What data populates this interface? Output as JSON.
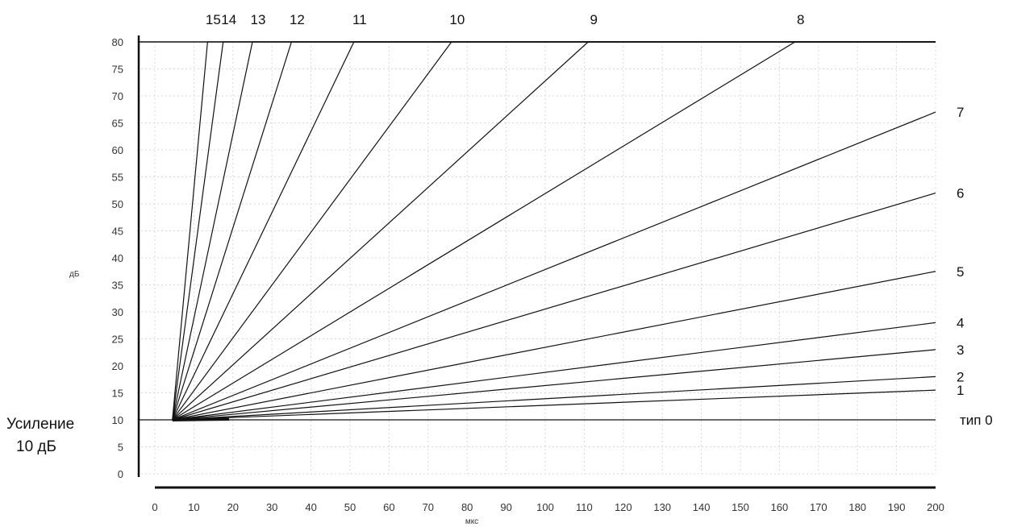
{
  "chart_data": {
    "type": "line",
    "xlabel": "мкс",
    "ylabel": "дБ",
    "xlim": [
      0,
      200
    ],
    "ylim": [
      0,
      80
    ],
    "grid": true,
    "x_ticks": [
      "0",
      "10",
      "20",
      "30",
      "40",
      "50",
      "60",
      "70",
      "80",
      "90",
      "100",
      "110",
      "120",
      "130",
      "140",
      "150",
      "160",
      "170",
      "180",
      "190",
      "200"
    ],
    "y_ticks": [
      "0",
      "5",
      "10",
      "15",
      "20",
      "25",
      "30",
      "35",
      "40",
      "45",
      "50",
      "55",
      "60",
      "65",
      "70",
      "75",
      "80"
    ],
    "annotation": {
      "line1": "Усиление",
      "line2": "10 дБ"
    },
    "baseline_gain": 10,
    "start_x": 4.5,
    "series": [
      {
        "name": "тип 0",
        "x": [
          4.5,
          200
        ],
        "y": [
          10,
          10
        ]
      },
      {
        "name": "1",
        "x": [
          4.5,
          200
        ],
        "y": [
          10,
          15.5
        ]
      },
      {
        "name": "2",
        "x": [
          4.5,
          200
        ],
        "y": [
          10,
          18
        ]
      },
      {
        "name": "3",
        "x": [
          4.5,
          200
        ],
        "y": [
          10,
          23
        ]
      },
      {
        "name": "4",
        "x": [
          4.5,
          200
        ],
        "y": [
          10,
          28
        ]
      },
      {
        "name": "5",
        "x": [
          4.5,
          200
        ],
        "y": [
          10,
          37.5
        ]
      },
      {
        "name": "6",
        "x": [
          4.5,
          200
        ],
        "y": [
          10,
          52
        ]
      },
      {
        "name": "7",
        "x": [
          4.5,
          200
        ],
        "y": [
          10,
          67
        ]
      },
      {
        "name": "8",
        "x": [
          4.5,
          164,
          200
        ],
        "y": [
          10,
          80,
          80
        ]
      },
      {
        "name": "9",
        "x": [
          4.5,
          111,
          200
        ],
        "y": [
          10,
          80,
          80
        ]
      },
      {
        "name": "10",
        "x": [
          4.5,
          76,
          200
        ],
        "y": [
          10,
          80,
          80
        ]
      },
      {
        "name": "11",
        "x": [
          4.5,
          51,
          200
        ],
        "y": [
          10,
          80,
          80
        ]
      },
      {
        "name": "12",
        "x": [
          4.5,
          35,
          200
        ],
        "y": [
          10,
          80,
          80
        ]
      },
      {
        "name": "13",
        "x": [
          4.5,
          25,
          200
        ],
        "y": [
          10,
          80,
          80
        ]
      },
      {
        "name": "14",
        "x": [
          4.5,
          17.5,
          200
        ],
        "y": [
          10,
          80,
          80
        ]
      },
      {
        "name": "15",
        "x": [
          4.5,
          13.5,
          200
        ],
        "y": [
          10,
          80,
          80
        ]
      }
    ]
  }
}
